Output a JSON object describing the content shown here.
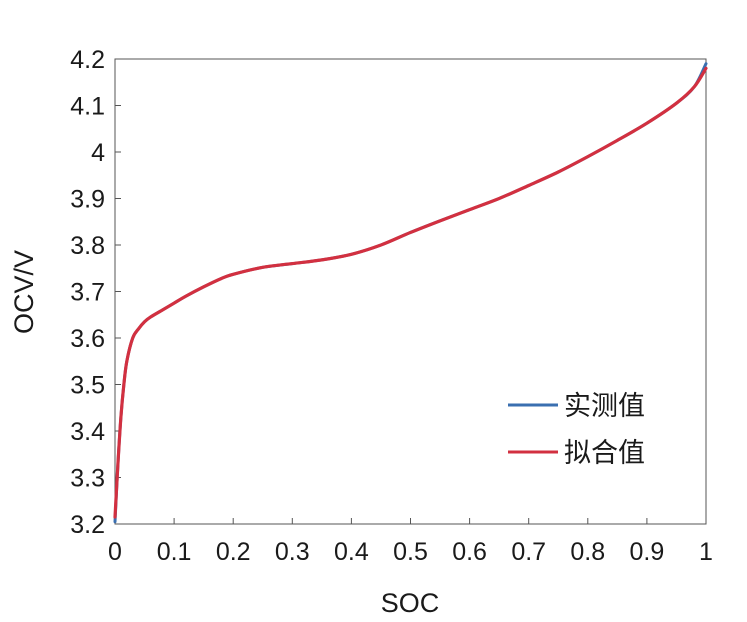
{
  "chart_data": {
    "type": "line",
    "xlabel": "SOC",
    "ylabel": "OCV/V",
    "xlim": [
      0,
      1
    ],
    "ylim": [
      3.2,
      4.2
    ],
    "xticks": [
      "0",
      "0.1",
      "0.2",
      "0.3",
      "0.4",
      "0.5",
      "0.6",
      "0.7",
      "0.8",
      "0.9",
      "1"
    ],
    "yticks": [
      "3.2",
      "3.3",
      "3.4",
      "3.5",
      "3.6",
      "3.7",
      "3.8",
      "3.9",
      "4",
      "4.1",
      "4.2"
    ],
    "grid": false,
    "legend_position": "bottom-right",
    "series": [
      {
        "name": "实测值",
        "color": "#3a6fb0",
        "x": [
          0,
          0.005,
          0.01,
          0.015,
          0.02,
          0.03,
          0.04,
          0.05,
          0.06,
          0.08,
          0.1,
          0.12,
          0.15,
          0.18,
          0.2,
          0.25,
          0.3,
          0.35,
          0.4,
          0.45,
          0.5,
          0.55,
          0.6,
          0.65,
          0.7,
          0.75,
          0.8,
          0.85,
          0.9,
          0.95,
          0.98,
          1.0
        ],
        "y": [
          3.205,
          3.33,
          3.43,
          3.5,
          3.55,
          3.6,
          3.62,
          3.635,
          3.645,
          3.66,
          3.675,
          3.69,
          3.71,
          3.728,
          3.737,
          3.752,
          3.76,
          3.768,
          3.78,
          3.8,
          3.827,
          3.852,
          3.876,
          3.9,
          3.928,
          3.957,
          3.99,
          4.025,
          4.062,
          4.105,
          4.14,
          4.19
        ]
      },
      {
        "name": "拟合值",
        "color": "#d23040",
        "x": [
          0,
          0.005,
          0.01,
          0.015,
          0.02,
          0.03,
          0.04,
          0.05,
          0.06,
          0.08,
          0.1,
          0.12,
          0.15,
          0.18,
          0.2,
          0.25,
          0.3,
          0.35,
          0.4,
          0.45,
          0.5,
          0.55,
          0.6,
          0.65,
          0.7,
          0.75,
          0.8,
          0.85,
          0.9,
          0.95,
          0.98,
          1.0
        ],
        "y": [
          3.215,
          3.33,
          3.43,
          3.5,
          3.55,
          3.6,
          3.62,
          3.635,
          3.645,
          3.66,
          3.675,
          3.69,
          3.71,
          3.728,
          3.737,
          3.752,
          3.76,
          3.768,
          3.78,
          3.8,
          3.827,
          3.852,
          3.876,
          3.9,
          3.928,
          3.957,
          3.99,
          4.025,
          4.062,
          4.105,
          4.14,
          4.18
        ]
      }
    ]
  }
}
